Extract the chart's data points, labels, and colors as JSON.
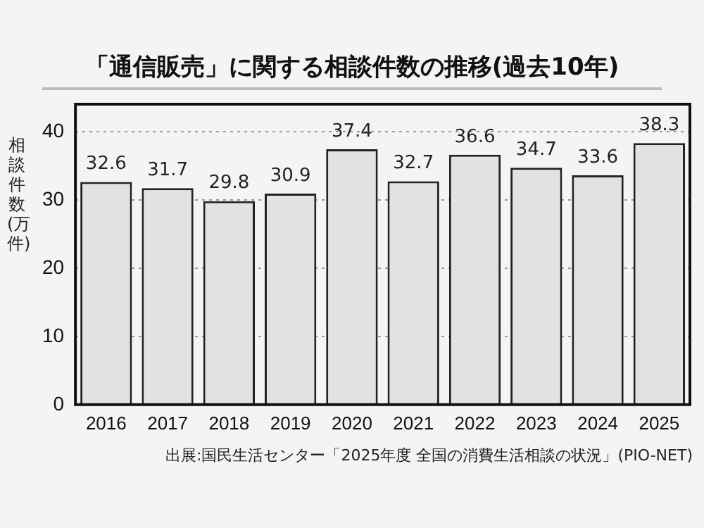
{
  "chart_data": {
    "type": "bar",
    "title": "「通信販売」に関する相談件数の推移(過去10年)",
    "ylabel": "相談件数(万件)",
    "categories": [
      "2016",
      "2017",
      "2018",
      "2019",
      "2020",
      "2021",
      "2022",
      "2023",
      "2024",
      "2025"
    ],
    "values": [
      32.6,
      31.7,
      29.8,
      30.9,
      37.4,
      32.7,
      36.6,
      34.7,
      33.6,
      38.3
    ],
    "color": "#e2e2e2",
    "ylim": [
      0,
      44
    ],
    "yticks": [
      0,
      10,
      20,
      30,
      40
    ],
    "grid": "y",
    "data_labels": true,
    "annotations": [
      "出展:国民生活センター「2025年度 全国の消費生活相談の状況」(PIO-NET)"
    ]
  }
}
